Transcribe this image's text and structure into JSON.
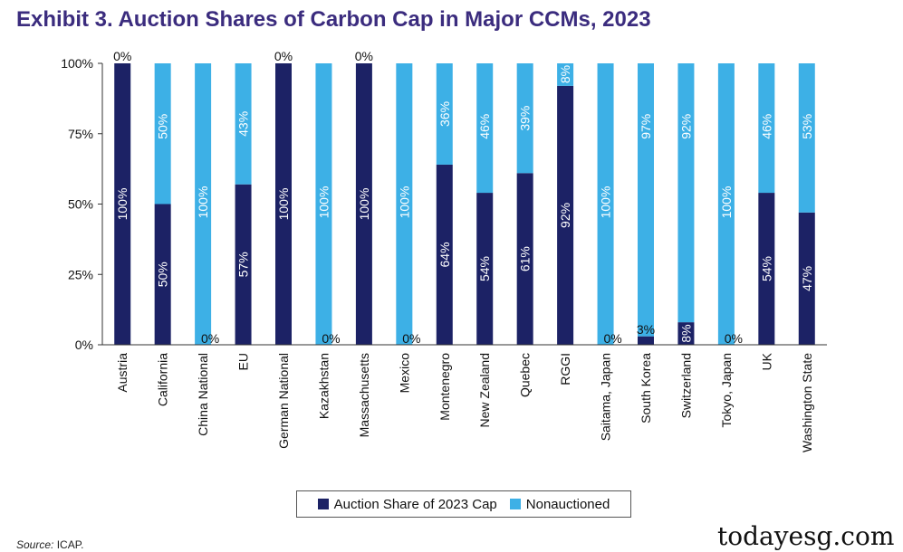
{
  "header": {
    "title": "Exhibit 3. Auction Shares of Carbon Cap in Major CCMs, 2023"
  },
  "footer": {
    "source_label": "Source:",
    "source_value": "ICAP.",
    "watermark": "todayesg.com"
  },
  "colors": {
    "auctioned": "#1c2265",
    "nonauctioned": "#3db0e6",
    "title": "#3b2c7e"
  },
  "chart_data": {
    "type": "bar",
    "stacked": true,
    "title": "Exhibit 3. Auction Shares of Carbon Cap in Major CCMs, 2023",
    "xlabel": "",
    "ylabel": "",
    "ylim": [
      0,
      100
    ],
    "yticks": [
      0,
      25,
      50,
      75,
      100
    ],
    "ytick_labels": [
      "0%",
      "25%",
      "50%",
      "75%",
      "100%"
    ],
    "grid": false,
    "legend_position": "bottom",
    "categories": [
      "Austria",
      "California",
      "China National",
      "EU",
      "German National",
      "Kazakhstan",
      "Massachusetts",
      "Mexico",
      "Montenegro",
      "New Zealand",
      "Quebec",
      "RGGI",
      "Saitama, Japan",
      "South Korea",
      "Switzerland",
      "Tokyo, Japan",
      "UK",
      "Washington State"
    ],
    "series": [
      {
        "name": "Auction Share of 2023 Cap",
        "values": [
          100,
          50,
          0,
          57,
          100,
          0,
          100,
          0,
          64,
          54,
          61,
          92,
          0,
          3,
          8,
          0,
          54,
          47
        ],
        "labels": [
          "100%",
          "50%",
          "0%",
          "57%",
          "100%",
          "0%",
          "100%",
          "0%",
          "64%",
          "54%",
          "61%",
          "92%",
          "0%",
          "3%",
          "8%",
          "0%",
          "54%",
          "47%"
        ]
      },
      {
        "name": "Nonauctioned",
        "values": [
          0,
          50,
          100,
          43,
          0,
          100,
          0,
          100,
          36,
          46,
          39,
          8,
          100,
          97,
          92,
          100,
          46,
          53
        ],
        "labels": [
          "0%",
          "50%",
          "100%",
          "43%",
          "0%",
          "100%",
          "0%",
          "100%",
          "36%",
          "46%",
          "39%",
          "8%",
          "100%",
          "97%",
          "92%",
          "100%",
          "46%",
          "53%"
        ]
      }
    ]
  }
}
